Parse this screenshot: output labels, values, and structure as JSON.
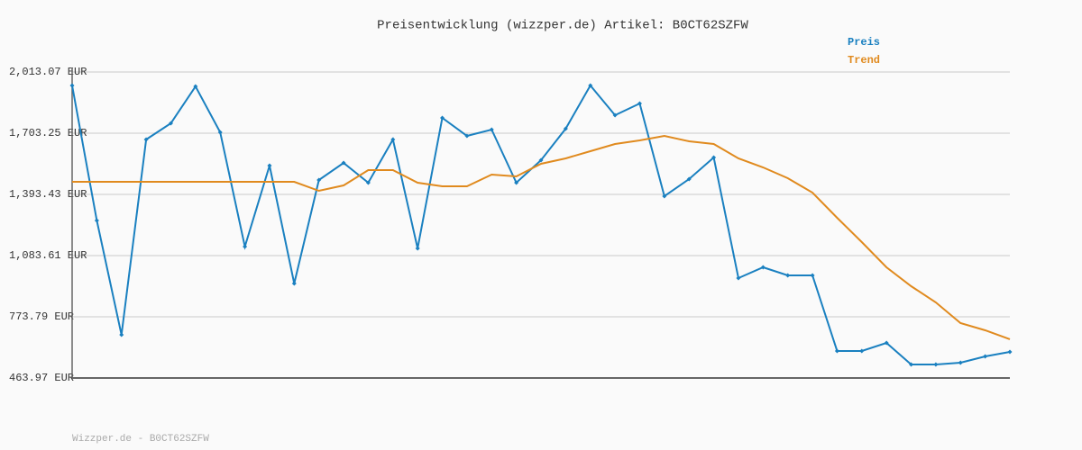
{
  "chart_data": {
    "type": "line",
    "title": "Preisentwicklung (wizzper.de) Artikel: B0CT62SZFW",
    "footer": "Wizzper.de - B0CT62SZFW",
    "categories": [
      null,
      null,
      null,
      null,
      null,
      null,
      null,
      null,
      null,
      null,
      null,
      null,
      null,
      null,
      null,
      null,
      null,
      null,
      null,
      null,
      null,
      null,
      null,
      null,
      null,
      null,
      null,
      null,
      null,
      null,
      null,
      null,
      null,
      null,
      null,
      null,
      null,
      null,
      null
    ],
    "series": [
      {
        "name": "Preis",
        "color": "#1a80c0",
        "markers": true,
        "values": [
          1944.7,
          1261.3,
          682.7,
          1671.3,
          1753.4,
          1940.1,
          1707.8,
          1129.2,
          1539.2,
          942.4,
          1466.3,
          1552.9,
          1452.7,
          1671.3,
          1120.1,
          1780.7,
          1689.6,
          1721.5,
          1452.7,
          1566.6,
          1726,
          1944.7,
          1794.4,
          1853.6,
          1384.3,
          1470.9,
          1580.2,
          969.7,
          1024.4,
          983.4,
          983.4,
          600.7,
          600.7,
          641.7,
          532.3,
          532.3,
          541.5,
          573.3,
          596.1
        ]
      },
      {
        "name": "Trend",
        "color": "#e08a1e",
        "markers": false,
        "values": [
          1457.2,
          1457.2,
          1457.2,
          1457.2,
          1457.2,
          1457.2,
          1457.2,
          1457.2,
          1457.2,
          1457.2,
          1411.6,
          1439,
          1516.4,
          1516.4,
          1452.7,
          1434.4,
          1434.4,
          1493.7,
          1484.5,
          1548.3,
          1575.7,
          1612.1,
          1648.6,
          1666.8,
          1689.6,
          1662.2,
          1648.6,
          1575.7,
          1530.1,
          1475.4,
          1402.5,
          1275,
          1152,
          1024.4,
          928.7,
          846.7,
          741.9,
          705.5,
          659.9
        ]
      }
    ],
    "ylim": [
      463.97,
      2013.07
    ],
    "yticks": [
      {
        "value": 463.97,
        "label": "463.97 EUR"
      },
      {
        "value": 773.79,
        "label": "773.79 EUR"
      },
      {
        "value": 1083.61,
        "label": "1,083.61 EUR"
      },
      {
        "value": 1393.43,
        "label": "1,393.43 EUR"
      },
      {
        "value": 1703.25,
        "label": "1,703.25 EUR"
      },
      {
        "value": 2013.07,
        "label": "2,013.07 EUR"
      }
    ],
    "grid": true
  }
}
